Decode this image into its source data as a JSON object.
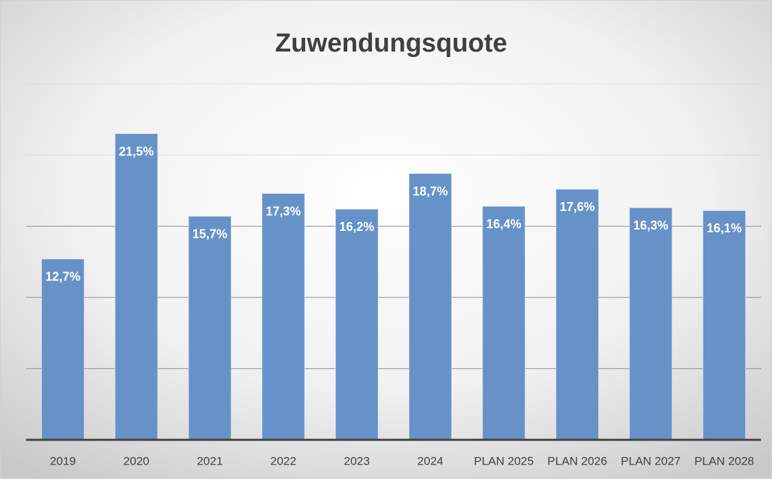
{
  "chart_data": {
    "type": "bar",
    "title": "Zuwendungsquote",
    "categories": [
      "2019",
      "2020",
      "2021",
      "2022",
      "2023",
      "2024",
      "PLAN 2025",
      "PLAN 2026",
      "PLAN 2027",
      "PLAN 2028"
    ],
    "values": [
      12.7,
      21.5,
      15.7,
      17.3,
      16.2,
      18.7,
      16.4,
      17.6,
      16.3,
      16.1
    ],
    "value_labels": [
      "12,7%",
      "21,5%",
      "15,7%",
      "17,3%",
      "16,2%",
      "18,7%",
      "16,4%",
      "17,6%",
      "16,3%",
      "16,1%"
    ],
    "color": "#6792c8",
    "ylim": [
      0,
      25
    ],
    "yticks": [
      0,
      5,
      10,
      15,
      20,
      25
    ],
    "grid": true
  }
}
